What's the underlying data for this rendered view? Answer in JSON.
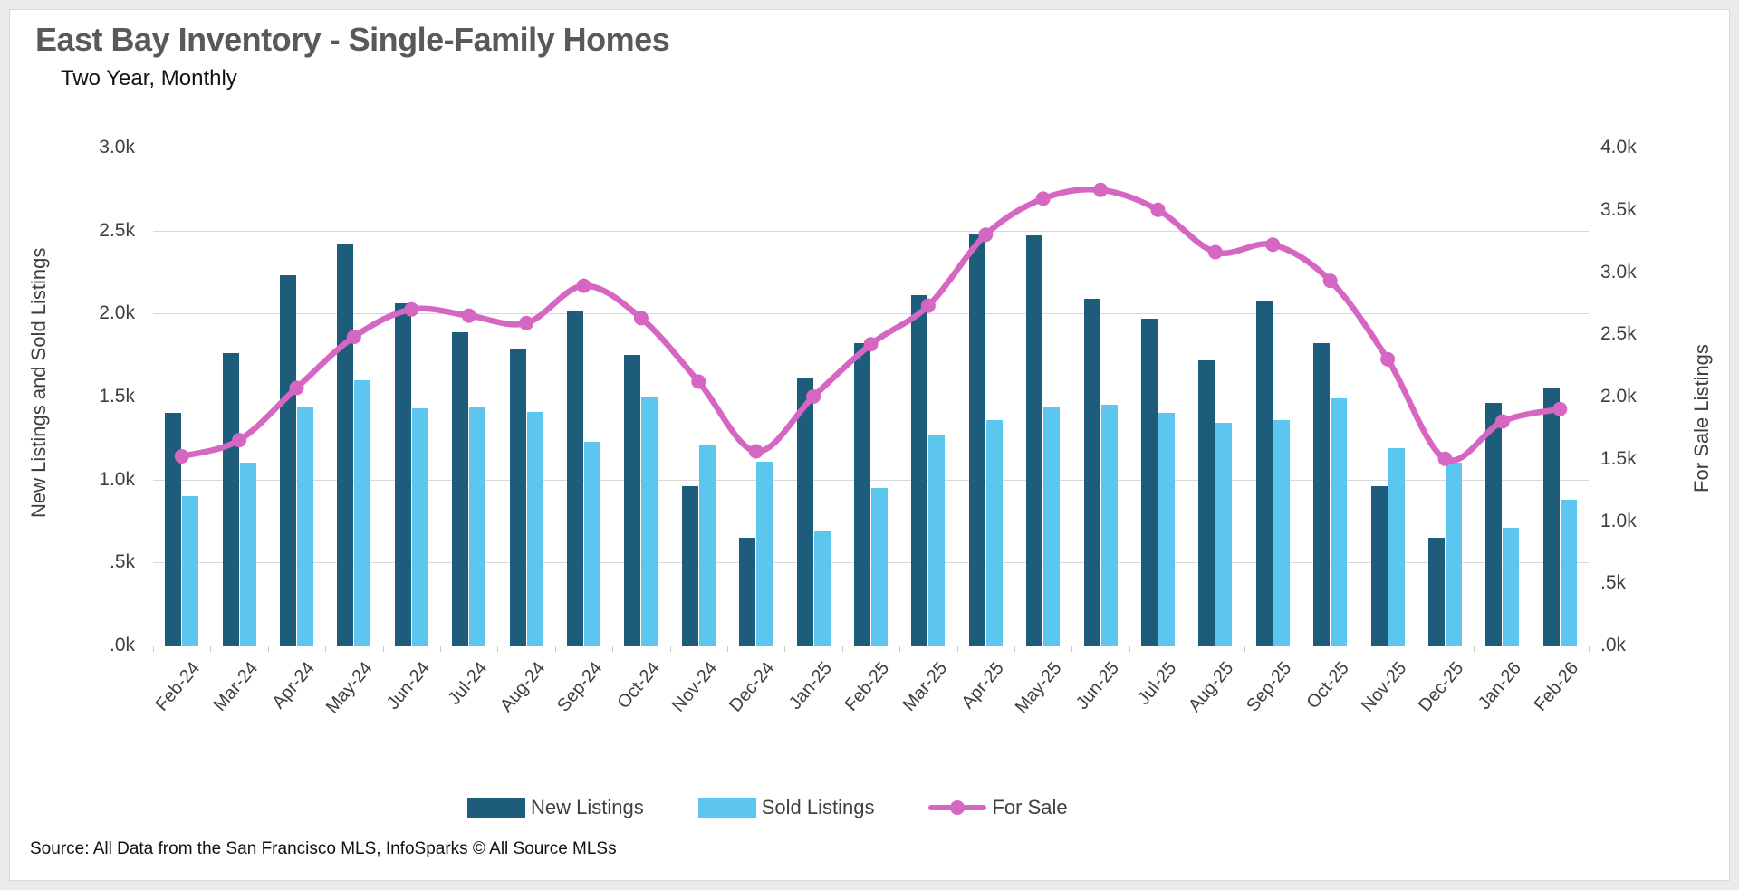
{
  "chart_data": {
    "type": "bar+line",
    "title": "East Bay Inventory - Single-Family Homes",
    "subtitle": "Two Year, Monthly",
    "categories": [
      "Feb-24",
      "Mar-24",
      "Apr-24",
      "May-24",
      "Jun-24",
      "Jul-24",
      "Aug-24",
      "Sep-24",
      "Oct-24",
      "Nov-24",
      "Dec-24",
      "Jan-25",
      "Feb-25",
      "Mar-25",
      "Apr-25",
      "May-25",
      "Jun-25",
      "Jul-25",
      "Aug-25",
      "Sep-25",
      "Oct-25",
      "Nov-25",
      "Dec-25",
      "Jan-26",
      "Feb-26"
    ],
    "series": [
      {
        "name": "New Listings",
        "type": "bar",
        "axis": "left",
        "color": "#1e5c7c",
        "values": [
          1400,
          1760,
          2230,
          2420,
          2060,
          1890,
          1790,
          2020,
          1750,
          960,
          650,
          1610,
          1820,
          2110,
          2480,
          2470,
          2090,
          1970,
          1720,
          2080,
          1820,
          960,
          650,
          1460,
          1550
        ]
      },
      {
        "name": "Sold Listings",
        "type": "bar",
        "axis": "left",
        "color": "#5cc6ee",
        "values": [
          900,
          1100,
          1440,
          1600,
          1430,
          1440,
          1410,
          1230,
          1500,
          1210,
          1110,
          690,
          950,
          1270,
          1360,
          1440,
          1450,
          1400,
          1340,
          1360,
          1490,
          1190,
          1100,
          710,
          880
        ]
      },
      {
        "name": "For Sale",
        "type": "line",
        "axis": "right",
        "color": "#d566c2",
        "values": [
          1520,
          1650,
          2070,
          2480,
          2700,
          2650,
          2590,
          2890,
          2630,
          2120,
          1560,
          2000,
          2420,
          2730,
          3300,
          3590,
          3660,
          3500,
          3160,
          3220,
          2930,
          2300,
          1500,
          1800,
          1900
        ]
      }
    ],
    "left_axis": {
      "label": "New Listings and Sold Listings",
      "min": 0,
      "max": 3000,
      "ticks": [
        "3.0k",
        "2.5k",
        "2.0k",
        "1.5k",
        "1.0k",
        ".5k",
        ".0k"
      ]
    },
    "right_axis": {
      "label": "For Sale Listings",
      "min": 0,
      "max": 4000,
      "ticks": [
        "4.0k",
        "3.5k",
        "3.0k",
        "2.5k",
        "2.0k",
        "1.5k",
        "1.0k",
        ".5k",
        ".0k"
      ]
    },
    "legend_position": "bottom",
    "grid": true,
    "source": "Source: All Data from the San Francisco MLS, InfoSparks © All Source MLSs",
    "colors": {
      "grid": "#d9d9d9",
      "axis_text": "#3f3f3f",
      "title_text": "#595959"
    }
  }
}
